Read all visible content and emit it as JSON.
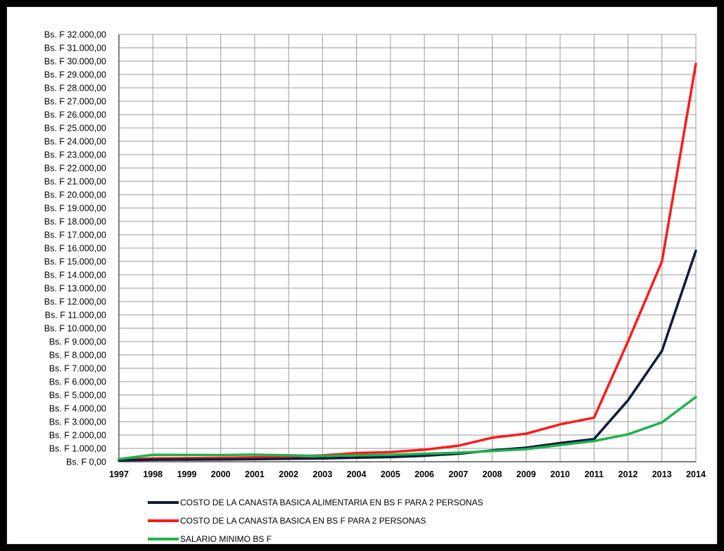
{
  "chart_data": {
    "type": "line",
    "x": [
      "1997",
      "1998",
      "1999",
      "2000",
      "2001",
      "2002",
      "2003",
      "2004",
      "2005",
      "2006",
      "2007",
      "2008",
      "2009",
      "2010",
      "2011",
      "2012",
      "2013",
      "2014"
    ],
    "y_ticks": [
      "Bs. F 0,00",
      "Bs. F 1.000,00",
      "Bs. F 2.000,00",
      "Bs. F 3.000,00",
      "Bs. F 4.000,00",
      "Bs. F 5.000,00",
      "Bs. F 6.000,00",
      "Bs. F 7.000,00",
      "Bs. F 8.000,00",
      "Bs. F 9.000,00",
      "Bs. F 10.000,00",
      "Bs. F 11.000,00",
      "Bs. F 12.000,00",
      "Bs. F 13.000,00",
      "Bs. F 14.000,00",
      "Bs. F 15.000,00",
      "Bs. F 16.000,00",
      "Bs. F 17.000,00",
      "Bs. F 18.000,00",
      "Bs. F 19.000,00",
      "Bs. F 20.000,00",
      "Bs. F 21.000,00",
      "Bs. F 22.000,00",
      "Bs. F 23.000,00",
      "Bs. F 24.000,00",
      "Bs. F 25.000,00",
      "Bs. F 26.000,00",
      "Bs. F 27.000,00",
      "Bs. F 28.000,00",
      "Bs. F 29.000,00",
      "Bs. F 30.000,00",
      "Bs. F 31.000,00",
      "Bs. F 32.000,00"
    ],
    "ylim": [
      0,
      32000
    ],
    "grid": true,
    "legend_position": "bottom",
    "series": [
      {
        "name": "COSTO DE LA CANASTA BASICA ALIMENTARIA EN BS F PARA 2 PERSONAS",
        "color": "#0d1b3e",
        "values": [
          100,
          150,
          160,
          170,
          190,
          220,
          250,
          300,
          350,
          450,
          600,
          850,
          1050,
          1400,
          1700,
          4600,
          8300,
          15800
        ]
      },
      {
        "name": "COSTO DE LA CANASTA BASICA  EN BS F PARA 2 PERSONAS",
        "color": "#ff1a1a",
        "values": [
          150,
          250,
          270,
          290,
          330,
          380,
          480,
          650,
          720,
          900,
          1200,
          1800,
          2100,
          2800,
          3300,
          9000,
          15000,
          29800
        ]
      },
      {
        "name": "SALARIO MINIMO BS F",
        "color": "#1db34a",
        "values": [
          200,
          520,
          510,
          500,
          530,
          480,
          430,
          480,
          520,
          600,
          680,
          800,
          950,
          1250,
          1550,
          2050,
          2950,
          4850
        ]
      }
    ]
  }
}
